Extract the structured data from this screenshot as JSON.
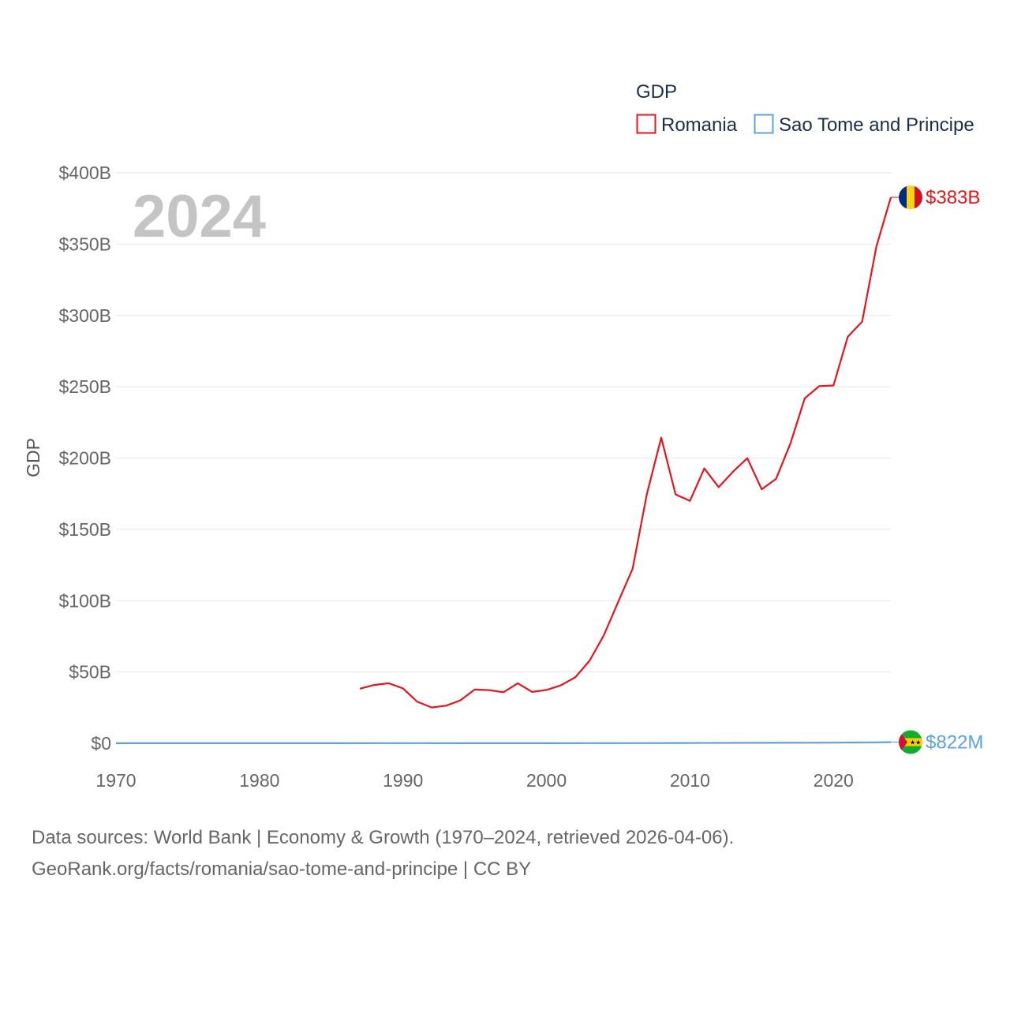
{
  "chart_data": {
    "type": "line",
    "ylabel": "GDP",
    "year_label": "2024",
    "legend": {
      "title": "GDP",
      "placement": "top-right"
    },
    "xlim": [
      1970,
      2024
    ],
    "ylim": [
      0,
      400
    ],
    "x_ticks": [
      1970,
      1980,
      1990,
      2000,
      2010,
      2020
    ],
    "y_ticks": [
      0,
      50,
      100,
      150,
      200,
      250,
      300,
      350,
      400
    ],
    "y_tick_labels": [
      "$0",
      "$50B",
      "$100B",
      "$150B",
      "$200B",
      "$250B",
      "$300B",
      "$350B",
      "$400B"
    ],
    "y_units": "billions USD",
    "series": [
      {
        "name": "Romania",
        "color": "#e8141c",
        "end_label": "$383B",
        "flag": "romania-flag",
        "x": [
          1987,
          1988,
          1989,
          1990,
          1991,
          1992,
          1993,
          1994,
          1995,
          1996,
          1997,
          1998,
          1999,
          2000,
          2001,
          2002,
          2003,
          2004,
          2005,
          2006,
          2007,
          2008,
          2009,
          2010,
          2011,
          2012,
          2013,
          2014,
          2015,
          2016,
          2017,
          2018,
          2019,
          2020,
          2021,
          2022,
          2023,
          2024
        ],
        "values": [
          38.3,
          40.9,
          42.1,
          38.5,
          29.1,
          25.1,
          26.4,
          30.1,
          37.7,
          37.3,
          35.8,
          42.1,
          36.0,
          37.4,
          40.6,
          46.2,
          57.8,
          75.8,
          99.2,
          122.4,
          175.0,
          214.3,
          174.5,
          170.0,
          192.7,
          179.6,
          190.5,
          199.9,
          178.1,
          185.4,
          210.2,
          241.9,
          250.4,
          250.9,
          285.1,
          295.6,
          348.6,
          382.8
        ]
      },
      {
        "name": "Sao Tome and Principe",
        "color": "#5ba3e0",
        "end_label": "$822M",
        "flag": "sao-tome-and-principe-flag",
        "x": [
          1970,
          1975,
          1980,
          1985,
          1990,
          1995,
          2000,
          2005,
          2010,
          2015,
          2020,
          2021,
          2022,
          2023,
          2024
        ],
        "values": [
          0.05,
          0.06,
          0.08,
          0.07,
          0.09,
          0.06,
          0.08,
          0.13,
          0.2,
          0.32,
          0.47,
          0.53,
          0.55,
          0.68,
          0.82
        ]
      }
    ]
  },
  "footer": {
    "line1": "Data sources: World Bank | Economy & Growth (1970–2024, retrieved 2026-04-06).",
    "line2": "GeoRank.org/facts/romania/sao-tome-and-principe | CC BY"
  }
}
